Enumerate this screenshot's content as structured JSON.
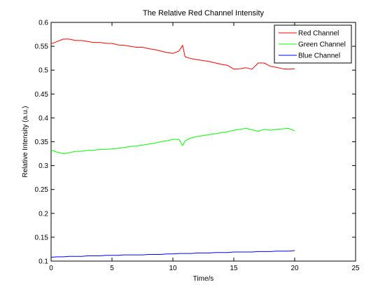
{
  "chart_data": {
    "type": "line",
    "title": "The Relative Red Channel Intensity",
    "xlabel": "Time/s",
    "ylabel": "Relative Intensity (a.u.)",
    "xlim": [
      0,
      25
    ],
    "ylim": [
      0.1,
      0.6
    ],
    "xticks": [
      0,
      5,
      10,
      15,
      20,
      25
    ],
    "yticks": [
      0.1,
      0.15,
      0.2,
      0.25,
      0.3,
      0.35,
      0.4,
      0.45,
      0.5,
      0.55,
      0.6
    ],
    "xtick_labels": [
      "0",
      "5",
      "10",
      "15",
      "20",
      "25"
    ],
    "ytick_labels": [
      "0.1",
      "0.15",
      "0.2",
      "0.25",
      "0.3",
      "0.35",
      "0.4",
      "0.45",
      "0.5",
      "0.55",
      "0.6"
    ],
    "grid": false,
    "legend_position": "top-right",
    "series": [
      {
        "name": "Red Channel",
        "color": "#ff0000",
        "x": [
          0,
          0.5,
          1,
          1.5,
          2,
          2.5,
          3,
          3.5,
          4,
          4.5,
          5,
          5.5,
          6,
          6.5,
          7,
          7.5,
          8,
          8.5,
          9,
          9.5,
          10,
          10.5,
          10.8,
          11,
          11.5,
          12,
          12.5,
          13,
          13.5,
          14,
          14.5,
          15,
          15.5,
          16,
          16.5,
          17,
          17.5,
          18,
          18.5,
          19,
          19.5,
          20
        ],
        "values": [
          0.555,
          0.56,
          0.565,
          0.565,
          0.562,
          0.562,
          0.56,
          0.558,
          0.558,
          0.556,
          0.556,
          0.553,
          0.552,
          0.55,
          0.548,
          0.548,
          0.545,
          0.543,
          0.54,
          0.537,
          0.535,
          0.54,
          0.552,
          0.528,
          0.524,
          0.522,
          0.52,
          0.518,
          0.515,
          0.512,
          0.51,
          0.502,
          0.503,
          0.505,
          0.502,
          0.515,
          0.515,
          0.508,
          0.506,
          0.503,
          0.502,
          0.503
        ]
      },
      {
        "name": "Green Channel",
        "color": "#00ff00",
        "x": [
          0,
          0.5,
          1,
          1.5,
          2,
          2.5,
          3,
          3.5,
          4,
          4.5,
          5,
          5.5,
          6,
          6.5,
          7,
          7.5,
          8,
          8.5,
          9,
          9.5,
          10,
          10.5,
          10.8,
          11,
          11.5,
          12,
          12.5,
          13,
          13.5,
          14,
          14.5,
          15,
          15.5,
          16,
          16.5,
          17,
          17.5,
          18,
          18.5,
          19,
          19.5,
          20
        ],
        "values": [
          0.333,
          0.328,
          0.325,
          0.327,
          0.33,
          0.33,
          0.332,
          0.332,
          0.334,
          0.334,
          0.335,
          0.336,
          0.338,
          0.34,
          0.341,
          0.343,
          0.345,
          0.347,
          0.35,
          0.352,
          0.355,
          0.355,
          0.342,
          0.352,
          0.358,
          0.361,
          0.363,
          0.365,
          0.367,
          0.369,
          0.371,
          0.374,
          0.376,
          0.378,
          0.375,
          0.372,
          0.376,
          0.374,
          0.376,
          0.377,
          0.378,
          0.373
        ]
      },
      {
        "name": "Blue Channel",
        "color": "#0000ff",
        "x": [
          0,
          0.5,
          1,
          1.5,
          2,
          2.5,
          3,
          3.5,
          4,
          4.5,
          5,
          5.5,
          6,
          6.5,
          7,
          7.5,
          8,
          8.5,
          9,
          9.5,
          10,
          10.5,
          11,
          11.5,
          12,
          12.5,
          13,
          13.5,
          14,
          14.5,
          15,
          15.5,
          16,
          16.5,
          17,
          17.5,
          18,
          18.5,
          19,
          19.5,
          20
        ],
        "values": [
          0.108,
          0.109,
          0.109,
          0.11,
          0.11,
          0.11,
          0.111,
          0.111,
          0.111,
          0.112,
          0.112,
          0.112,
          0.113,
          0.113,
          0.113,
          0.113,
          0.114,
          0.114,
          0.114,
          0.115,
          0.115,
          0.116,
          0.116,
          0.116,
          0.117,
          0.117,
          0.117,
          0.118,
          0.118,
          0.118,
          0.119,
          0.119,
          0.119,
          0.119,
          0.12,
          0.12,
          0.12,
          0.121,
          0.121,
          0.121,
          0.122
        ]
      }
    ]
  }
}
